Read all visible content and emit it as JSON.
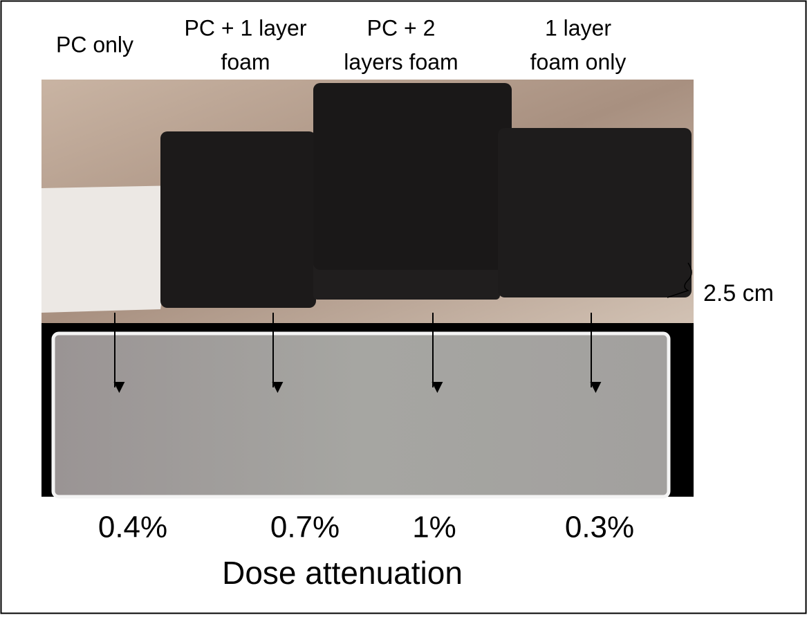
{
  "labels": [
    {
      "lines": [
        "PC only"
      ],
      "percent": "0.4%",
      "color": "#00b050"
    },
    {
      "lines": [
        "PC + 1 layer",
        "foam"
      ],
      "percent": "0.7%",
      "color": "#00b050"
    },
    {
      "lines": [
        "PC + 2",
        "layers foam"
      ],
      "percent": "1%",
      "color": "#ff0000"
    },
    {
      "lines": [
        "1 layer",
        "foam only"
      ],
      "percent": "0.3%",
      "color": "#00b050"
    }
  ],
  "thickness": "2.5 cm",
  "caption": "Dose attenuation"
}
